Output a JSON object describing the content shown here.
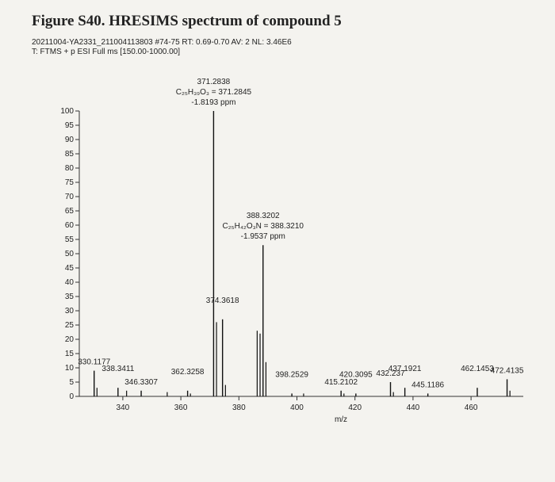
{
  "chart_data": {
    "type": "spectrum",
    "title": "Figure S40. HRESIMS spectrum of compound 5",
    "header": [
      "20211004-YA2331_211004113803 #74-75 RT: 0.69-0.70 AV: 2 NL: 3.46E6",
      "T: FTMS + p ESI Full ms [150.00-1000.00]"
    ],
    "x_label": "m/z",
    "xlim": [
      325,
      478
    ],
    "xticks": [
      340,
      360,
      380,
      400,
      420,
      440,
      460
    ],
    "ylim": [
      0,
      100
    ],
    "yticks": [
      0,
      5,
      10,
      15,
      20,
      25,
      30,
      35,
      40,
      45,
      50,
      55,
      60,
      65,
      70,
      75,
      80,
      85,
      90,
      95,
      100
    ],
    "color": "#111111",
    "peaks": [
      {
        "x": 330.1177,
        "y": 9
      },
      {
        "x": 338.3411,
        "y": 3
      },
      {
        "x": 346.3307,
        "y": 2
      },
      {
        "x": 362.3258,
        "y": 2
      },
      {
        "x": 371.2838,
        "y": 100,
        "formula": "C₂₅H₃₉O₃ = 371.2845",
        "ppm": "-1.8193 ppm"
      },
      {
        "x": 374.3618,
        "y": 27
      },
      {
        "x": 388.3202,
        "y": 53,
        "formula": "C₂₅H₄₂O₃N = 388.3210",
        "ppm": "-1.9537 ppm"
      },
      {
        "x": 398.2529,
        "y": 1
      },
      {
        "x": 415.2102,
        "y": 2
      },
      {
        "x": 420.3095,
        "y": 1
      },
      {
        "x": 432.237,
        "y": 5
      },
      {
        "x": 437.1921,
        "y": 3
      },
      {
        "x": 445.1186,
        "y": 1
      },
      {
        "x": 462.1453,
        "y": 3
      },
      {
        "x": 472.4135,
        "y": 6
      }
    ],
    "minor_peaks": {
      "x": [
        331.1,
        341.3,
        355.3,
        363.3,
        372.29,
        375.37,
        386.3,
        387.3,
        389.32,
        402.3,
        416.2,
        433.24,
        473.4
      ],
      "values": [
        3,
        2,
        1.5,
        1,
        26,
        4,
        23,
        22,
        12,
        1,
        1,
        1.5,
        2
      ]
    }
  }
}
